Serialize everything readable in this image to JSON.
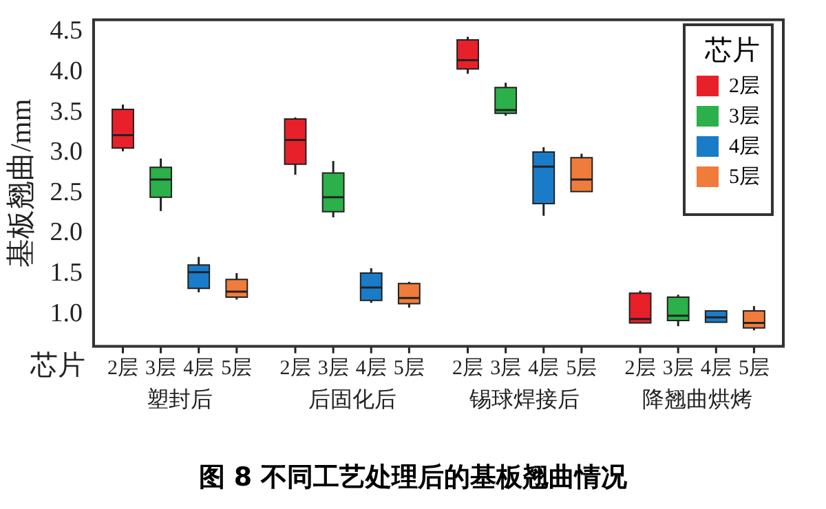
{
  "chart_data": {
    "type": "box",
    "title": "图 8  不同工艺处理后的基板翘曲情况",
    "ylabel": "基板翘曲/mm",
    "xlabel": "芯片",
    "legend_title": "芯片",
    "legend": "top right",
    "grid": false,
    "categories": [
      "塑封后",
      "后固化后",
      "锡球焊接后",
      "降翘曲烘烤"
    ],
    "ylim": [
      0.6,
      4.65
    ],
    "yticks": [
      {
        "value": 1,
        "label": "1.0"
      },
      1.5,
      {
        "value": 2,
        "label": "2.0"
      },
      2.5,
      {
        "value": 3,
        "label": "3.0"
      },
      3.5,
      {
        "value": 4,
        "label": "4.0"
      },
      4.5
    ],
    "series": [
      {
        "name": "2层",
        "color": "#e8202a",
        "boxes": [
          {
            "low": 3.02,
            "q1": 3.06,
            "median": 3.22,
            "q3": 3.54,
            "high": 3.6
          },
          {
            "low": 2.73,
            "q1": 2.86,
            "median": 3.16,
            "q3": 3.42,
            "high": 3.44
          },
          {
            "low": 3.98,
            "q1": 4.04,
            "median": 4.15,
            "q3": 4.4,
            "high": 4.44
          },
          {
            "low": 0.89,
            "q1": 0.89,
            "median": 0.94,
            "q3": 1.26,
            "high": 1.29
          }
        ]
      },
      {
        "name": "3层",
        "color": "#2bb04a",
        "boxes": [
          {
            "low": 2.28,
            "q1": 2.45,
            "median": 2.67,
            "q3": 2.82,
            "high": 2.93
          },
          {
            "low": 2.2,
            "q1": 2.27,
            "median": 2.45,
            "q3": 2.75,
            "high": 2.9
          },
          {
            "low": 3.46,
            "q1": 3.49,
            "median": 3.53,
            "q3": 3.81,
            "high": 3.87
          },
          {
            "low": 0.85,
            "q1": 0.92,
            "median": 0.98,
            "q3": 1.21,
            "high": 1.24
          }
        ]
      },
      {
        "name": "4层",
        "color": "#1a7cc8",
        "boxes": [
          {
            "low": 1.27,
            "q1": 1.32,
            "median": 1.52,
            "q3": 1.61,
            "high": 1.71
          },
          {
            "low": 1.14,
            "q1": 1.17,
            "median": 1.33,
            "q3": 1.51,
            "high": 1.57
          },
          {
            "low": 2.22,
            "q1": 2.37,
            "median": 2.83,
            "q3": 3.01,
            "high": 3.07
          },
          {
            "low": 0.9,
            "q1": 0.9,
            "median": 0.96,
            "q3": 1.04,
            "high": 1.04
          }
        ]
      },
      {
        "name": "5层",
        "color": "#f07c3c",
        "boxes": [
          {
            "low": 1.18,
            "q1": 1.21,
            "median": 1.28,
            "q3": 1.43,
            "high": 1.51
          },
          {
            "low": 1.08,
            "q1": 1.13,
            "median": 1.2,
            "q3": 1.38,
            "high": 1.4
          },
          {
            "low": 2.52,
            "q1": 2.52,
            "median": 2.67,
            "q3": 2.94,
            "high": 2.99
          },
          {
            "low": 0.8,
            "q1": 0.83,
            "median": 0.89,
            "q3": 1.04,
            "high": 1.1
          }
        ]
      }
    ]
  }
}
